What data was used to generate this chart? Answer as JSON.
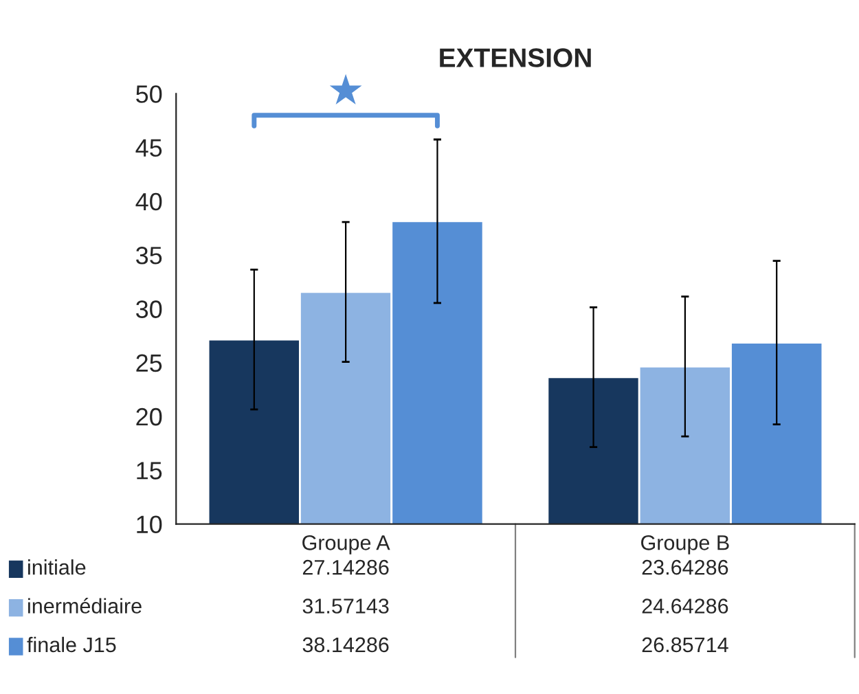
{
  "chart_data": {
    "type": "bar",
    "title": "EXTENSION",
    "categories": [
      "Groupe A",
      "Groupe B"
    ],
    "series": [
      {
        "name": "initiale",
        "color": "#17375e",
        "values": [
          27.14286,
          23.64286
        ],
        "errors": [
          6.5,
          6.5
        ]
      },
      {
        "name": "inermédiaire",
        "color": "#8db3e2",
        "values": [
          31.57143,
          24.64286
        ],
        "errors": [
          6.5,
          6.5
        ]
      },
      {
        "name": "finale J15",
        "color": "#558ed5",
        "values": [
          38.14286,
          26.85714
        ],
        "errors": [
          7.6,
          7.6
        ]
      }
    ],
    "ylim": [
      10,
      50
    ],
    "yticks": [
      10,
      15,
      20,
      25,
      30,
      35,
      40,
      45,
      50
    ],
    "grid": false,
    "legend": "bottom",
    "data_labels": true,
    "annotations": [
      "★"
    ]
  }
}
